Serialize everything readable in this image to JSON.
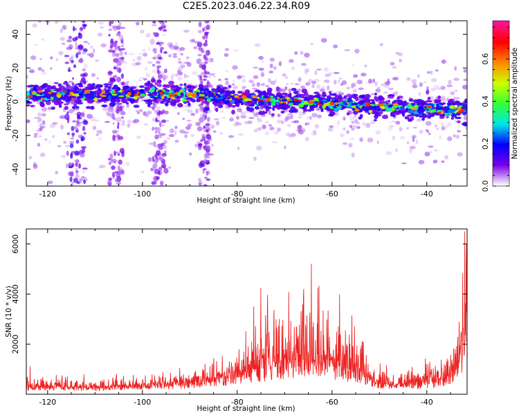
{
  "figure": {
    "title": "C2E5.2023.046.22.34.R09"
  },
  "chart_data": [
    {
      "type": "heatmap",
      "xlabel": "Height of straight line (km)",
      "ylabel": "Frequency (Hz)",
      "xlim": [
        -124.5,
        -31.5
      ],
      "ylim": [
        -50,
        48
      ],
      "x_ticks": [
        -120,
        -100,
        -80,
        -60,
        -40
      ],
      "x_tick_labels": [
        "-120",
        "-100",
        "-80",
        "-60",
        "-40"
      ],
      "y_ticks": [
        -40,
        -20,
        0,
        20,
        40
      ],
      "y_tick_labels": [
        "-40",
        "-20",
        "0",
        "20",
        "40"
      ],
      "ridge": {
        "x": [
          -124,
          -110,
          -100,
          -90,
          -80,
          -70,
          -60,
          -50,
          -40,
          -32
        ],
        "frequency": [
          4,
          4,
          5,
          4,
          2,
          0,
          -1,
          -3,
          -4,
          -5
        ]
      },
      "colorbar": {
        "label": "Normalized spectral amplitude",
        "range": [
          0.0,
          0.78
        ],
        "ticks": [
          0.0,
          0.2,
          0.4,
          0.6
        ],
        "tick_labels": [
          "0.0",
          "0.2",
          "0.4",
          "0.6"
        ],
        "colormap": "gist_ncar_r",
        "colors": [
          "#ffffff",
          "#7a00e6",
          "#0000ff",
          "#00e6e6",
          "#33ff33",
          "#ccff00",
          "#ff8800",
          "#ff0000",
          "#ff1199"
        ]
      }
    },
    {
      "type": "line",
      "xlabel": "Height of straight line (km)",
      "ylabel": "SNR (10 * v/v)",
      "xlim": [
        -124.5,
        -31.5
      ],
      "ylim": [
        0,
        6600
      ],
      "x_ticks": [
        -120,
        -100,
        -80,
        -60,
        -40
      ],
      "x_tick_labels": [
        "-120",
        "-100",
        "-80",
        "-60",
        "-40"
      ],
      "y_ticks": [
        2000,
        4000,
        6000
      ],
      "y_tick_labels": [
        "2000",
        "4000",
        "6000"
      ],
      "line_color": "#ee2222",
      "envelope": {
        "x": [
          -124.5,
          -120,
          -110,
          -100,
          -95,
          -90,
          -85,
          -80,
          -75,
          -70,
          -65,
          -60,
          -55,
          -50,
          -45,
          -40,
          -35,
          -33,
          -32,
          -31.6
        ],
        "snr_base": [
          250,
          250,
          220,
          300,
          350,
          420,
          550,
          650,
          850,
          1000,
          1150,
          1050,
          800,
          350,
          300,
          380,
          600,
          1100,
          2200,
          2600
        ],
        "snr_peak": [
          900,
          700,
          600,
          700,
          800,
          1000,
          1300,
          1700,
          4250,
          3900,
          4250,
          3600,
          2900,
          1000,
          800,
          1300,
          2000,
          2700,
          4900,
          6500
        ]
      },
      "labeled_peaks": [
        {
          "x": -75,
          "snr": 4250
        },
        {
          "x": -66,
          "snr": 4200
        },
        {
          "x": -63,
          "snr": 4250
        },
        {
          "x": -32,
          "snr": 6500
        }
      ]
    }
  ]
}
